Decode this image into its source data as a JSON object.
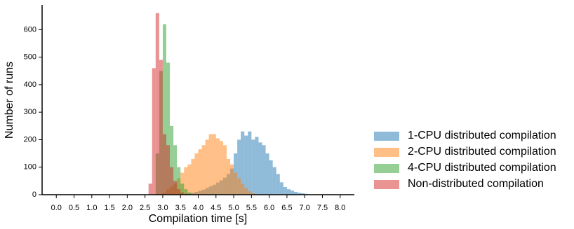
{
  "chart_data": {
    "type": "histogram",
    "xlabel": "Compilation time [s]",
    "ylabel": "Number of runs",
    "xlim": [
      -0.4,
      8.4
    ],
    "ylim": [
      0,
      690
    ],
    "xticks": [
      {
        "value": 0,
        "label": "0.0"
      },
      0.5,
      {
        "value": 1,
        "label": "1.0"
      },
      1.5,
      {
        "value": 2,
        "label": "2.0"
      },
      2.5,
      {
        "value": 3,
        "label": "3.0"
      },
      3.5,
      {
        "value": 4,
        "label": "4.0"
      },
      4.5,
      {
        "value": 5,
        "label": "5.0"
      },
      5.5,
      {
        "value": 6,
        "label": "6.0"
      },
      6.5,
      {
        "value": 7,
        "label": "7.0"
      },
      7.5,
      {
        "value": 8,
        "label": "8.0"
      }
    ],
    "yticks": [
      0,
      100,
      200,
      300,
      400,
      500,
      600
    ],
    "legend": "outside lower right",
    "opacity": 0.5,
    "series": [
      {
        "name": "1-CPU distributed compilation",
        "color": "#1f77b4",
        "bins": [
          3.5,
          3.6,
          3.7,
          3.8,
          3.9,
          4.0,
          4.1,
          4.2,
          4.3,
          4.4,
          4.5,
          4.6,
          4.7,
          4.8,
          4.9,
          5.0,
          5.1,
          5.2,
          5.3,
          5.4,
          5.5,
          5.6,
          5.7,
          5.8,
          5.9,
          6.0,
          6.1,
          6.2,
          6.3,
          6.4,
          6.5,
          6.6,
          6.7,
          6.8,
          6.9,
          7.0,
          7.1,
          7.2
        ],
        "values": [
          2,
          3,
          5,
          7,
          10,
          14,
          18,
          24,
          30,
          36,
          44,
          52,
          62,
          75,
          95,
          150,
          200,
          230,
          215,
          230,
          200,
          210,
          190,
          180,
          150,
          125,
          100,
          75,
          45,
          28,
          20,
          15,
          10,
          7,
          5,
          3,
          1
        ]
      },
      {
        "name": "2-CPU distributed compilation",
        "color": "#ff7f0e",
        "bins": [
          2.9,
          3.0,
          3.1,
          3.2,
          3.3,
          3.4,
          3.5,
          3.6,
          3.7,
          3.8,
          3.9,
          4.0,
          4.1,
          4.2,
          4.3,
          4.4,
          4.5,
          4.6,
          4.7,
          4.8,
          4.9,
          5.0,
          5.1,
          5.2,
          5.3,
          5.4,
          5.5,
          5.6,
          5.7
        ],
        "values": [
          3,
          8,
          20,
          30,
          40,
          60,
          80,
          100,
          110,
          130,
          150,
          165,
          180,
          200,
          220,
          220,
          205,
          195,
          180,
          130,
          110,
          80,
          60,
          40,
          25,
          12,
          5,
          2
        ]
      },
      {
        "name": "4-CPU distributed compilation",
        "color": "#2ca02c",
        "bins": [
          2.8,
          2.9,
          3.0,
          3.1,
          3.2,
          3.3,
          3.4,
          3.5,
          3.6,
          3.7,
          3.8
        ],
        "values": [
          150,
          450,
          620,
          480,
          250,
          180,
          100,
          40,
          20,
          8
        ]
      },
      {
        "name": "Non-distributed compilation",
        "color": "#d62728",
        "bins": [
          2.6,
          2.7,
          2.8,
          2.9,
          3.0,
          3.1,
          3.2,
          3.3,
          3.4,
          3.5,
          3.6,
          3.7
        ],
        "values": [
          40,
          460,
          660,
          490,
          220,
          180,
          100,
          50,
          20,
          8,
          3
        ]
      }
    ]
  }
}
